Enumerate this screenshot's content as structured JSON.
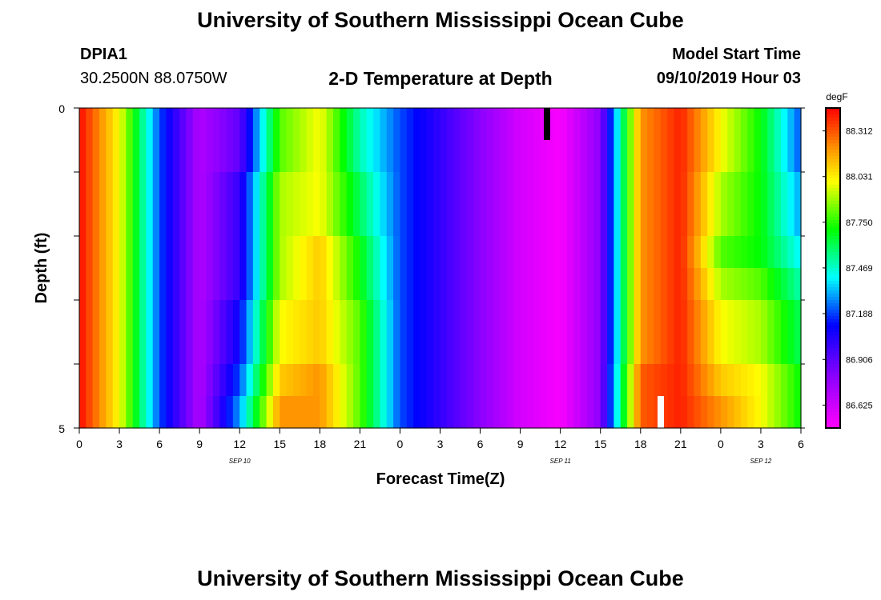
{
  "page": {
    "title_top": "University of Southern Mississippi Ocean Cube",
    "title_bottom": "University of Southern Mississippi Ocean Cube",
    "station_id": "DPIA1",
    "station_coords": "30.2500N 88.0750W",
    "chart_heading": "2-D Temperature at Depth",
    "model_label": "Model Start Time",
    "model_time": "09/10/2019 Hour 03"
  },
  "chart_data": {
    "type": "heatmap",
    "title": "2-D Temperature at Depth",
    "xlabel": "Forecast Time(Z)",
    "ylabel": "Depth (ft)",
    "x_range_hours": [
      0,
      54
    ],
    "y_range_ft": [
      0,
      5
    ],
    "y_tick_labels": [
      "0",
      "5"
    ],
    "y_minor_ticks": [
      1,
      2,
      3,
      4
    ],
    "x_tick_labels": [
      "0",
      "3",
      "6",
      "9",
      "12",
      "15",
      "18",
      "21",
      "0",
      "3",
      "6",
      "9",
      "12",
      "15",
      "18",
      "21",
      "0",
      "3",
      "6"
    ],
    "date_labels": [
      {
        "text": "SEP 10",
        "hour": 12
      },
      {
        "text": "SEP 11",
        "hour": 36
      },
      {
        "text": "SEP 12",
        "hour": 51
      }
    ],
    "colorbar": {
      "unit": "degF",
      "min": 86.484,
      "max": 88.453,
      "tick_labels": [
        "88.312",
        "88.031",
        "87.750",
        "87.469",
        "87.188",
        "86.906",
        "86.625"
      ],
      "tick_values": [
        88.312,
        88.031,
        87.75,
        87.469,
        87.188,
        86.906,
        86.625
      ]
    },
    "depth_layers_ft": [
      0.25,
      0.75,
      1.25,
      1.75,
      2.25,
      2.75,
      3.25,
      3.75,
      4.25,
      4.75
    ],
    "hours": [
      0,
      3,
      6,
      9,
      12,
      15,
      18,
      21,
      24,
      27,
      30,
      33,
      36,
      39,
      42,
      45,
      48,
      51,
      54
    ],
    "temperature_degF": [
      [
        88.44,
        88.0,
        87.2,
        86.7,
        86.9,
        87.8,
        88.0,
        87.5,
        87.2,
        87.0,
        86.8,
        86.6,
        86.5,
        86.8,
        88.2,
        88.4,
        88.0,
        87.7,
        87.2
      ],
      [
        88.44,
        88.0,
        87.2,
        86.7,
        86.9,
        87.8,
        88.0,
        87.5,
        87.2,
        87.0,
        86.8,
        86.6,
        86.5,
        86.8,
        88.2,
        88.4,
        88.0,
        87.7,
        87.2
      ],
      [
        88.44,
        88.0,
        87.2,
        86.7,
        87.0,
        87.9,
        88.0,
        87.6,
        87.2,
        87.0,
        86.8,
        86.6,
        86.5,
        86.8,
        88.2,
        88.4,
        87.9,
        87.7,
        87.3
      ],
      [
        88.44,
        88.0,
        87.2,
        86.7,
        87.0,
        87.9,
        88.0,
        87.6,
        87.2,
        87.0,
        86.8,
        86.6,
        86.5,
        86.8,
        88.2,
        88.4,
        87.9,
        87.7,
        87.3
      ],
      [
        88.44,
        88.0,
        87.2,
        86.7,
        87.0,
        87.9,
        88.1,
        87.7,
        87.2,
        87.0,
        86.8,
        86.6,
        86.5,
        86.8,
        88.2,
        88.4,
        87.8,
        87.7,
        87.4
      ],
      [
        88.44,
        88.0,
        87.2,
        86.7,
        87.0,
        87.9,
        88.1,
        87.7,
        87.2,
        87.0,
        86.8,
        86.6,
        86.5,
        86.8,
        88.2,
        88.4,
        87.9,
        87.8,
        87.5
      ],
      [
        88.44,
        88.0,
        87.2,
        86.7,
        87.1,
        88.0,
        88.1,
        87.8,
        87.2,
        87.0,
        86.8,
        86.6,
        86.5,
        86.8,
        88.2,
        88.4,
        88.0,
        87.9,
        87.6
      ],
      [
        88.44,
        88.0,
        87.2,
        86.7,
        87.1,
        88.0,
        88.1,
        87.8,
        87.2,
        87.0,
        86.8,
        86.6,
        86.5,
        86.8,
        88.2,
        88.4,
        88.0,
        87.9,
        87.6
      ],
      [
        88.44,
        88.0,
        87.2,
        86.7,
        87.2,
        88.1,
        88.2,
        87.8,
        87.2,
        87.0,
        86.8,
        86.6,
        86.5,
        86.8,
        88.3,
        88.4,
        88.1,
        88.0,
        87.7
      ],
      [
        88.44,
        88.0,
        87.2,
        86.7,
        87.3,
        88.2,
        88.2,
        87.8,
        87.2,
        87.0,
        86.8,
        86.6,
        86.5,
        86.8,
        88.3,
        88.4,
        88.2,
        88.0,
        87.7
      ]
    ]
  }
}
